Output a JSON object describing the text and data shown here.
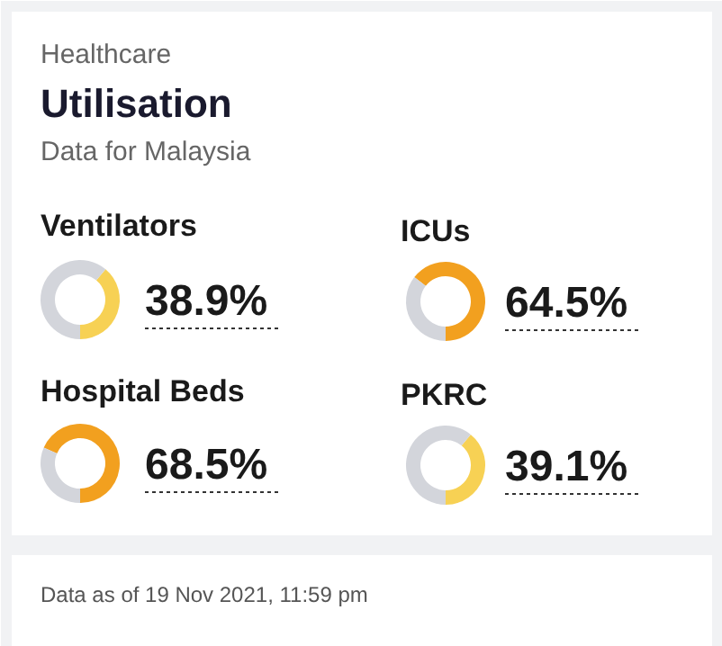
{
  "chart_data": [
    {
      "type": "other",
      "annotations": [
        "Healthcare"
      ],
      "title": "Utilisation",
      "subtitle": "Data for Malaysia"
    },
    {
      "type": "donut",
      "title": "Ventilators",
      "categories": [
        null,
        null
      ],
      "values": [
        38.9,
        61.1
      ],
      "colors": [
        "#f7d154",
        "#d3d5db"
      ],
      "value_labels": [
        "38.9%",
        null
      ]
    },
    {
      "type": "donut",
      "title": "ICUs",
      "categories": [
        null,
        null
      ],
      "values": [
        64.5,
        35.5
      ],
      "colors": [
        "#f2a01f",
        "#d3d5db"
      ],
      "value_labels": [
        "64.5%",
        null
      ]
    },
    {
      "type": "donut",
      "title": "Hospital Beds",
      "categories": [
        null,
        null
      ],
      "values": [
        68.5,
        31.5
      ],
      "colors": [
        "#f2a01f",
        "#d3d5db"
      ],
      "value_labels": [
        "68.5%",
        null
      ]
    },
    {
      "type": "donut",
      "title": "PKRC",
      "categories": [
        null,
        null
      ],
      "values": [
        39.1,
        60.9
      ],
      "colors": [
        "#f7d154",
        "#d3d5db"
      ],
      "value_labels": [
        "39.1%",
        null
      ]
    },
    {
      "type": "other",
      "annotations": [
        "Data as of 19 Nov 2021, 11:59 pm"
      ]
    }
  ]
}
